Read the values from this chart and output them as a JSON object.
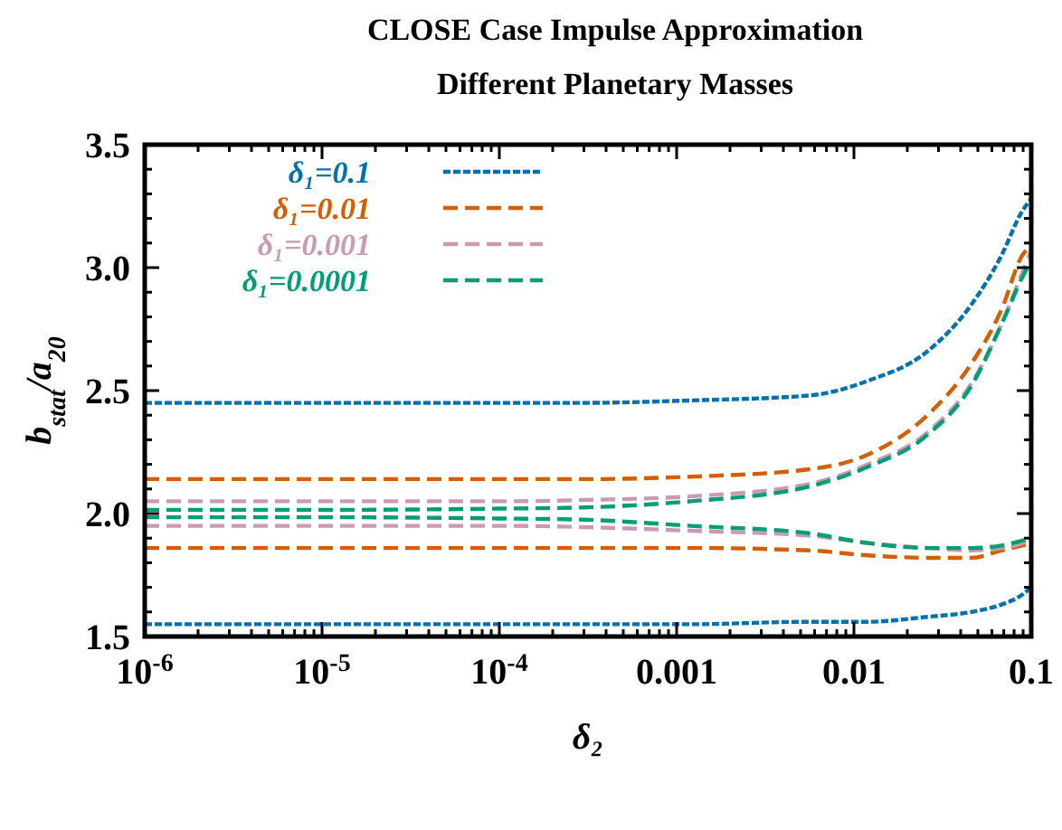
{
  "chart_data": {
    "type": "line",
    "title": "CLOSE Case Impulse Approximation",
    "subtitle": "Different Planetary Masses",
    "xlabel": "δ₂",
    "ylabel": "b$_{stat}$/a$_{20}$",
    "log": "x",
    "legend": "top left",
    "grid": false,
    "x": [
      1e-06,
      1e-05,
      0.0001,
      0.0003,
      0.0012,
      0.0056,
      0.012,
      0.026,
      0.046,
      0.068,
      0.089,
      0.1
    ],
    "xlim": [
      1e-06,
      0.1
    ],
    "xticks": [
      {
        "value": 1e-06,
        "label": "10$^{-6}$"
      },
      {
        "value": 1e-05,
        "label": "10$^{-5}$"
      },
      {
        "value": 0.0001,
        "label": "10$^{-4}$"
      },
      0.001,
      0.01,
      0.1,
      {
        "value": 2e-06,
        "label": null
      },
      {
        "value": 3e-06,
        "label": null
      },
      {
        "value": 4e-06,
        "label": null
      },
      {
        "value": 5e-06,
        "label": null
      },
      {
        "value": 6e-06,
        "label": null
      },
      {
        "value": 7e-06,
        "label": null
      },
      {
        "value": 8e-06,
        "label": null
      },
      {
        "value": 9e-06,
        "label": null
      },
      {
        "value": 2e-05,
        "label": null
      },
      {
        "value": 3e-05,
        "label": null
      },
      {
        "value": 4e-05,
        "label": null
      },
      {
        "value": 5e-05,
        "label": null
      },
      {
        "value": 6e-05,
        "label": null
      },
      {
        "value": 7e-05,
        "label": null
      },
      {
        "value": 8e-05,
        "label": null
      },
      {
        "value": 9e-05,
        "label": null
      },
      {
        "value": 0.0002,
        "label": null
      },
      {
        "value": 0.0003,
        "label": null
      },
      {
        "value": 0.0004,
        "label": null
      },
      {
        "value": 0.0005,
        "label": null
      },
      {
        "value": 0.0006,
        "label": null
      },
      {
        "value": 0.0007,
        "label": null
      },
      {
        "value": 0.0008,
        "label": null
      },
      {
        "value": 0.0009,
        "label": null
      },
      {
        "value": 0.002,
        "label": null
      },
      {
        "value": 0.003,
        "label": null
      },
      {
        "value": 0.004,
        "label": null
      },
      {
        "value": 0.005,
        "label": null
      },
      {
        "value": 0.006,
        "label": null
      },
      {
        "value": 0.007,
        "label": null
      },
      {
        "value": 0.008,
        "label": null
      },
      {
        "value": 0.009,
        "label": null
      },
      {
        "value": 0.02,
        "label": null
      },
      {
        "value": 0.03,
        "label": null
      },
      {
        "value": 0.04,
        "label": null
      },
      {
        "value": 0.05,
        "label": null
      },
      {
        "value": 0.06,
        "label": null
      },
      {
        "value": 0.07,
        "label": null
      },
      {
        "value": 0.08,
        "label": null
      },
      {
        "value": 0.09,
        "label": null
      }
    ],
    "ylim": [
      1.5,
      3.5
    ],
    "yticks": [
      {
        "value": 1.5,
        "label": "1.5"
      },
      {
        "value": 2,
        "label": "2.0"
      },
      {
        "value": 2.5,
        "label": "2.5"
      },
      {
        "value": 3,
        "label": "3.0"
      },
      {
        "value": 3.5,
        "label": "3.5"
      },
      {
        "value": 1.6,
        "label": null
      },
      {
        "value": 1.7,
        "label": null
      },
      {
        "value": 1.8,
        "label": null
      },
      {
        "value": 1.9,
        "label": null
      },
      {
        "value": 2.1,
        "label": null
      },
      {
        "value": 2.2,
        "label": null
      },
      {
        "value": 2.3,
        "label": null
      },
      {
        "value": 2.4,
        "label": null
      },
      {
        "value": 2.6,
        "label": null
      },
      {
        "value": 2.7,
        "label": null
      },
      {
        "value": 2.8,
        "label": null
      },
      {
        "value": 2.9,
        "label": null
      },
      {
        "value": 3.1,
        "label": null
      },
      {
        "value": 3.2,
        "label": null
      },
      {
        "value": 3.3,
        "label": null
      },
      {
        "value": 3.4,
        "label": null
      }
    ],
    "series": [
      {
        "name": "δ₁=0.1",
        "color": "#0072b2",
        "line_style": "dotted",
        "values": [
          2.45,
          2.45,
          2.45,
          2.45,
          2.46,
          2.48,
          2.54,
          2.66,
          2.85,
          3.05,
          3.23,
          3.28
        ]
      },
      {
        "name": "δ₁=0.01",
        "color": "#d55e00",
        "line_style": "dashed",
        "values": [
          2.14,
          2.14,
          2.14,
          2.14,
          2.15,
          2.18,
          2.24,
          2.4,
          2.61,
          2.83,
          3.05,
          3.09
        ]
      },
      {
        "name": "δ₁=0.001",
        "color": "#cc99b5",
        "line_style": "dashed",
        "values": [
          2.05,
          2.05,
          2.05,
          2.055,
          2.07,
          2.12,
          2.2,
          2.33,
          2.53,
          2.77,
          2.98,
          3.07
        ]
      },
      {
        "name": "δ₁=0.0001",
        "color": "#009e73",
        "line_style": "dashed",
        "values": [
          2.015,
          2.015,
          2.02,
          2.025,
          2.05,
          2.11,
          2.19,
          2.32,
          2.52,
          2.77,
          2.96,
          3.03
        ]
      },
      {
        "color": "#0072b2",
        "line_style": "dotted",
        "values": [
          1.55,
          1.55,
          1.55,
          1.55,
          1.55,
          1.56,
          1.56,
          1.58,
          1.6,
          1.63,
          1.67,
          1.7
        ]
      },
      {
        "color": "#d55e00",
        "line_style": "dashed",
        "values": [
          1.86,
          1.86,
          1.86,
          1.86,
          1.86,
          1.85,
          1.83,
          1.82,
          1.82,
          1.85,
          1.87,
          1.88
        ]
      },
      {
        "color": "#cc99b5",
        "line_style": "dashed",
        "values": [
          1.95,
          1.95,
          1.95,
          1.945,
          1.93,
          1.91,
          1.88,
          1.86,
          1.85,
          1.86,
          1.88,
          1.9
        ]
      },
      {
        "color": "#009e73",
        "line_style": "dashed",
        "values": [
          1.985,
          1.985,
          1.98,
          1.975,
          1.95,
          1.92,
          1.88,
          1.86,
          1.86,
          1.87,
          1.89,
          1.9
        ]
      }
    ]
  }
}
